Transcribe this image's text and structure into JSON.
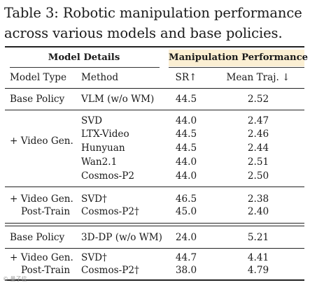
{
  "caption": {
    "line1": "Table 3: Robotic manipulation performance",
    "line2": "across various models and base policies."
  },
  "group_headers": {
    "model_details": "Model Details",
    "manipulation_performance": "Manipulation Performance"
  },
  "columns": [
    "Model Type",
    "Method",
    "SR↑",
    "Mean Traj. ↓"
  ],
  "rows": [
    {
      "type": "Base Policy",
      "method": "VLM (w/o WM)",
      "sr": "44.5",
      "traj": "2.52"
    },
    {
      "type": "",
      "method": "SVD",
      "sr": "44.0",
      "traj": "2.47"
    },
    {
      "type": "+ Video Gen.",
      "method": "LTX-Video",
      "sr": "44.5",
      "traj": "2.46"
    },
    {
      "type": "",
      "method": "Hunyuan",
      "sr": "44.5",
      "traj": "2.44"
    },
    {
      "type": "",
      "method": "Wan2.1",
      "sr": "44.0",
      "traj": "2.51"
    },
    {
      "type": "",
      "method": "Cosmos-P2",
      "sr": "44.0",
      "traj": "2.50"
    },
    {
      "type": "+ Video Gen.",
      "method": "SVD†",
      "sr": "46.5",
      "traj": "2.38"
    },
    {
      "type": "Post-Train",
      "method": "Cosmos-P2†",
      "sr": "45.0",
      "traj": "2.40"
    },
    {
      "type": "Base Policy",
      "method": "3D-DP (w/o WM)",
      "sr": "24.0",
      "traj": "5.21"
    },
    {
      "type": "+ Video Gen.",
      "method": "SVD†",
      "sr": "44.7",
      "traj": "4.41"
    },
    {
      "type": "Post-Train",
      "method": "Cosmos-P2†",
      "sr": "38.0",
      "traj": "4.79"
    }
  ],
  "watermark": "© 量子位",
  "colors": {
    "header_highlight": "#fbefd3",
    "rule": "#222222"
  }
}
